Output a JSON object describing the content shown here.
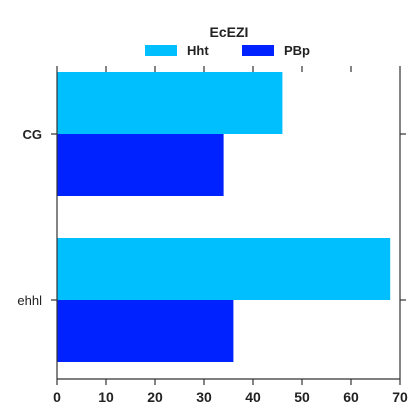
{
  "chart_data": {
    "type": "bar",
    "orientation": "horizontal",
    "legend": {
      "title": "EcEZI",
      "placement": "top-center"
    },
    "categories": [
      "CG",
      "ehhl"
    ],
    "series": [
      {
        "name": "Hht",
        "color": "#00BFFF",
        "values": [
          46,
          68
        ]
      },
      {
        "name": "PBp",
        "color": "#0022FF",
        "values": [
          34,
          36
        ]
      }
    ],
    "xlim": [
      0,
      70
    ],
    "xticks": [
      "0",
      "10",
      "20",
      "30",
      "40",
      "50",
      "60",
      "70"
    ],
    "grid": false,
    "xlabel": "",
    "ylabel": ""
  }
}
